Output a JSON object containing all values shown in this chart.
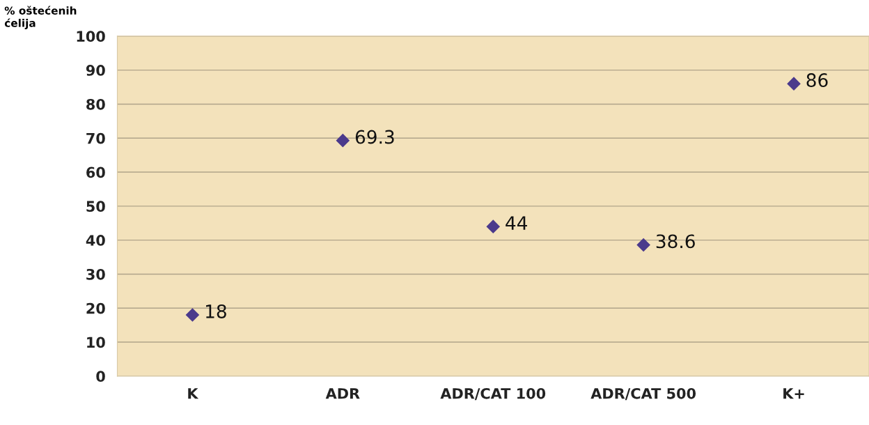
{
  "chart_data": {
    "type": "scatter",
    "ylabel": "% oštećenih\nćelija",
    "categories": [
      "K",
      "ADR",
      "ADR/CAT 100",
      "ADR/CAT 500",
      "K+"
    ],
    "series": [
      {
        "color": "#4b3a8c",
        "values": [
          18,
          69.3,
          44,
          38.6,
          86
        ]
      }
    ],
    "ylim": [
      0,
      100
    ],
    "yticks": [
      0,
      10,
      20,
      30,
      40,
      50,
      60,
      70,
      80,
      90,
      100
    ],
    "grid": "y",
    "marker": "diamond",
    "data_labels": true
  }
}
